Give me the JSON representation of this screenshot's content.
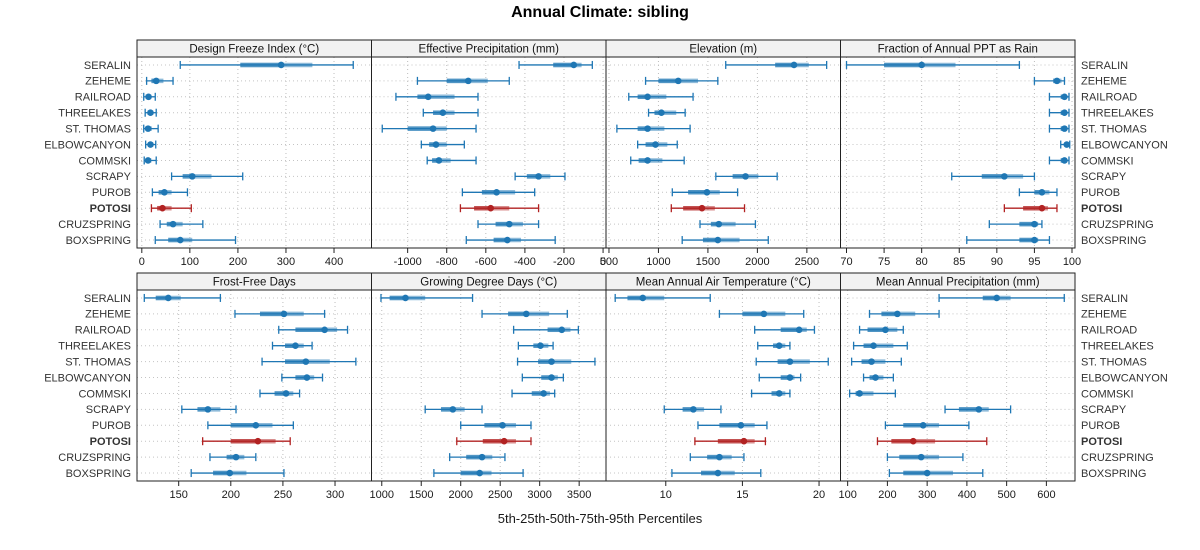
{
  "title": "Annual Climate: sibling",
  "footer": "5th-25th-50th-75th-95th Percentiles",
  "colors": {
    "series": "#1f77b4",
    "highlight": "#b22222",
    "strip_bg": "#f2f2f2",
    "panel_border": "#222222",
    "grid": "#bdbdbd",
    "row_guide": "#c4c4c4",
    "tick_text": "#1a1a1a",
    "label_text": "#333333"
  },
  "stations": [
    "SERALIN",
    "ZEHEME",
    "RAILROAD",
    "THREELAKES",
    "ST. THOMAS",
    "ELBOWCANYON",
    "COMMSKI",
    "SCRAPY",
    "PUROB",
    "POTOSI",
    "CRUZSPRING",
    "BOXSPRING"
  ],
  "highlight_station": "POTOSI",
  "chart_data": {
    "type": "interval",
    "percentiles": [
      5,
      25,
      50,
      75,
      95
    ],
    "legend_note": "horizontal 5-95 whisker with caps, 25-75 thick band, dot at median",
    "panels": [
      {
        "title": "Design Freeze Index (°C)",
        "row": 0,
        "col": 0,
        "xlim": [
          -10,
          478
        ],
        "ticks": [
          0,
          100,
          200,
          300,
          400
        ],
        "values": [
          [
            80,
            205,
            290,
            355,
            440
          ],
          [
            10,
            20,
            30,
            45,
            65
          ],
          [
            4,
            8,
            14,
            20,
            28
          ],
          [
            7,
            12,
            18,
            24,
            30
          ],
          [
            4,
            8,
            13,
            21,
            34
          ],
          [
            8,
            13,
            18,
            24,
            29
          ],
          [
            5,
            8,
            13,
            20,
            30
          ],
          [
            62,
            85,
            105,
            145,
            210
          ],
          [
            22,
            35,
            47,
            62,
            95
          ],
          [
            20,
            32,
            43,
            62,
            103
          ],
          [
            38,
            52,
            65,
            85,
            127
          ],
          [
            28,
            55,
            80,
            105,
            195
          ]
        ]
      },
      {
        "title": "Effective Precipitation (mm)",
        "row": 0,
        "col": 1,
        "xlim": [
          -1185,
          15
        ],
        "ticks": [
          -1000,
          -800,
          -600,
          -400,
          -200,
          0
        ],
        "values": [
          [
            -430,
            -255,
            -150,
            -110,
            -55
          ],
          [
            -950,
            -800,
            -690,
            -590,
            -480
          ],
          [
            -1060,
            -950,
            -895,
            -760,
            -640
          ],
          [
            -920,
            -870,
            -820,
            -760,
            -640
          ],
          [
            -1130,
            -1000,
            -870,
            -800,
            -650
          ],
          [
            -930,
            -890,
            -855,
            -800,
            -710
          ],
          [
            -900,
            -875,
            -840,
            -780,
            -650
          ],
          [
            -450,
            -390,
            -330,
            -270,
            -195
          ],
          [
            -720,
            -620,
            -545,
            -450,
            -350
          ],
          [
            -730,
            -660,
            -575,
            -480,
            -330
          ],
          [
            -640,
            -550,
            -480,
            -410,
            -330
          ],
          [
            -700,
            -560,
            -490,
            -420,
            -245
          ]
        ]
      },
      {
        "title": "Elevation (m)",
        "row": 0,
        "col": 2,
        "xlim": [
          470,
          2840
        ],
        "ticks": [
          500,
          1000,
          1500,
          2000,
          2500
        ],
        "values": [
          [
            1680,
            2180,
            2370,
            2520,
            2700
          ],
          [
            870,
            1000,
            1200,
            1400,
            1600
          ],
          [
            700,
            790,
            890,
            1080,
            1350
          ],
          [
            900,
            960,
            1030,
            1180,
            1270
          ],
          [
            580,
            790,
            890,
            1060,
            1320
          ],
          [
            790,
            870,
            970,
            1090,
            1190
          ],
          [
            720,
            800,
            890,
            1040,
            1260
          ],
          [
            1580,
            1750,
            1880,
            2010,
            2200
          ],
          [
            1140,
            1300,
            1490,
            1620,
            1800
          ],
          [
            1130,
            1250,
            1440,
            1570,
            1870
          ],
          [
            1420,
            1530,
            1610,
            1780,
            1980
          ],
          [
            1240,
            1450,
            1600,
            1820,
            2110
          ]
        ]
      },
      {
        "title": "Fraction of Annual PPT as Rain",
        "row": 0,
        "col": 3,
        "xlim": [
          69.2,
          100.4
        ],
        "ticks": [
          70,
          75,
          80,
          85,
          90,
          95,
          100
        ],
        "values": [
          [
            70,
            75,
            80,
            84.5,
            93
          ],
          [
            95,
            97.5,
            98,
            98.6,
            99
          ],
          [
            97,
            98.5,
            99,
            99.3,
            99.6
          ],
          [
            97,
            98.5,
            99,
            99.3,
            99.6
          ],
          [
            97,
            98.5,
            99,
            99.3,
            99.6
          ],
          [
            98.5,
            99,
            99.3,
            99.5,
            99.7
          ],
          [
            97,
            98.5,
            99,
            99.3,
            99.6
          ],
          [
            84,
            88,
            91,
            93.5,
            95
          ],
          [
            93,
            95,
            96,
            97,
            98
          ],
          [
            91,
            93.5,
            96,
            96.8,
            98
          ],
          [
            89,
            93,
            95,
            95.5,
            96
          ],
          [
            86,
            93,
            95,
            95.5,
            97
          ]
        ]
      },
      {
        "title": "Frost-Free Days",
        "row": 1,
        "col": 0,
        "xlim": [
          110,
          335
        ],
        "ticks": [
          150,
          200,
          250,
          300
        ],
        "values": [
          [
            117,
            128,
            140,
            152,
            190
          ],
          [
            204,
            228,
            251,
            270,
            290
          ],
          [
            246,
            262,
            290,
            302,
            312
          ],
          [
            240,
            252,
            262,
            270,
            278
          ],
          [
            230,
            252,
            272,
            295,
            320
          ],
          [
            249,
            262,
            273,
            280,
            288
          ],
          [
            228,
            242,
            253,
            260,
            266
          ],
          [
            153,
            168,
            178,
            190,
            205
          ],
          [
            178,
            200,
            224,
            240,
            260
          ],
          [
            173,
            200,
            226,
            243,
            257
          ],
          [
            180,
            196,
            205,
            213,
            224
          ],
          [
            162,
            183,
            199,
            215,
            251
          ]
        ]
      },
      {
        "title": "Growing Degree Days (°C)",
        "row": 1,
        "col": 1,
        "xlim": [
          870,
          3840
        ],
        "ticks": [
          1000,
          1500,
          2000,
          2500,
          3000,
          3500
        ],
        "values": [
          [
            990,
            1100,
            1300,
            1550,
            2150
          ],
          [
            2270,
            2600,
            2830,
            3120,
            3350
          ],
          [
            2670,
            3100,
            3280,
            3390,
            3490
          ],
          [
            2730,
            2920,
            3010,
            3110,
            3170
          ],
          [
            2720,
            2980,
            3150,
            3400,
            3700
          ],
          [
            2780,
            3020,
            3150,
            3230,
            3300
          ],
          [
            2650,
            2900,
            3050,
            3130,
            3190
          ],
          [
            1550,
            1750,
            1900,
            2050,
            2270
          ],
          [
            2000,
            2300,
            2530,
            2700,
            2890
          ],
          [
            1950,
            2280,
            2550,
            2700,
            2890
          ],
          [
            1860,
            2070,
            2270,
            2400,
            2560
          ],
          [
            1660,
            2000,
            2240,
            2390,
            2790
          ]
        ]
      },
      {
        "title": "Mean Annual Air Temperature (°C)",
        "row": 1,
        "col": 2,
        "xlim": [
          6.1,
          21.4
        ],
        "ticks": [
          10,
          15,
          20
        ],
        "values": [
          [
            6.7,
            7.5,
            8.5,
            9.9,
            12.9
          ],
          [
            13.5,
            15.0,
            16.4,
            17.8,
            19.0
          ],
          [
            15.8,
            17.5,
            18.7,
            19.2,
            19.7
          ],
          [
            16.0,
            17.0,
            17.4,
            17.8,
            18.1
          ],
          [
            15.9,
            17.3,
            18.1,
            19.4,
            20.6
          ],
          [
            16.1,
            17.5,
            18.1,
            18.4,
            18.8
          ],
          [
            15.6,
            16.9,
            17.4,
            17.8,
            18.1
          ],
          [
            9.9,
            11.1,
            11.8,
            12.5,
            13.6
          ],
          [
            12.1,
            13.5,
            14.9,
            15.8,
            16.6
          ],
          [
            11.9,
            13.4,
            15.1,
            15.8,
            16.5
          ],
          [
            11.6,
            12.7,
            13.5,
            14.3,
            15.1
          ],
          [
            10.4,
            12.3,
            13.4,
            14.5,
            16.2
          ]
        ]
      },
      {
        "title": "Mean Annual Precipitation (mm)",
        "row": 1,
        "col": 3,
        "xlim": [
          82,
          672
        ],
        "ticks": [
          100,
          200,
          300,
          400,
          500,
          600
        ],
        "values": [
          [
            330,
            440,
            475,
            510,
            645
          ],
          [
            155,
            185,
            225,
            270,
            330
          ],
          [
            130,
            150,
            195,
            225,
            240
          ],
          [
            115,
            140,
            165,
            215,
            250
          ],
          [
            110,
            135,
            160,
            195,
            235
          ],
          [
            140,
            155,
            170,
            190,
            215
          ],
          [
            105,
            120,
            130,
            165,
            220
          ],
          [
            345,
            380,
            430,
            455,
            510
          ],
          [
            195,
            240,
            290,
            330,
            405
          ],
          [
            175,
            210,
            265,
            320,
            450
          ],
          [
            200,
            230,
            285,
            330,
            390
          ],
          [
            205,
            240,
            300,
            365,
            440
          ]
        ]
      }
    ]
  }
}
